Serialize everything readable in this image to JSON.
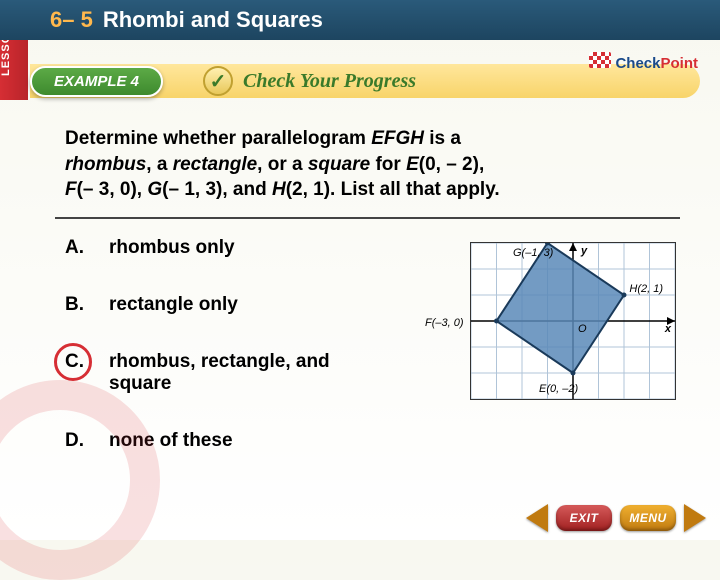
{
  "header": {
    "lesson_label": "LESSON",
    "lesson_number": "6– 5",
    "title": "Rhombi and Squares"
  },
  "example": {
    "pill": "EXAMPLE 4",
    "cyp": "Check Your Progress",
    "checkpoint_1": "Check",
    "checkpoint_2": "Point"
  },
  "question": {
    "l1a": "Determine whether parallelogram ",
    "l1b": "EFGH",
    "l1c": " is a ",
    "l2a": "rhombus",
    "l2b": ", a ",
    "l2c": "rectangle",
    "l2d": ", or a ",
    "l2e": "square",
    "l2f": " for ",
    "l2g": "E",
    "l2h": "(0, – 2), ",
    "l3a": "F",
    "l3b": "(– 3, 0), ",
    "l3c": "G",
    "l3d": "(– 1, 3), and ",
    "l3e": "H",
    "l3f": "(2, 1). List all that apply."
  },
  "choices": {
    "a_letter": "A.",
    "a_text": "rhombus only",
    "b_letter": "B.",
    "b_text": "rectangle only",
    "c_letter": "C.",
    "c_text": "rhombus, rectangle, and square",
    "d_letter": "D.",
    "d_text": "none of these",
    "correct_index": 2
  },
  "graph": {
    "points": {
      "E": [
        0,
        -2
      ],
      "F": [
        -3,
        0
      ],
      "G": [
        -1,
        3
      ],
      "H": [
        2,
        1
      ]
    },
    "xlim": [
      -4,
      4
    ],
    "ylim": [
      -3,
      3
    ],
    "grid_color": "#b0c4d8",
    "axis_color": "#000000",
    "quad_fill": "#5a8ab8",
    "quad_stroke": "#1a3a5a",
    "labels": {
      "G": "G(–1, 3)",
      "H": "H(2, 1)",
      "F": "F(–3, 0)",
      "E": "E(0, –2)",
      "O": "O",
      "x": "x",
      "y": "y"
    }
  },
  "nav": {
    "exit": "EXIT",
    "menu": "MENU"
  }
}
